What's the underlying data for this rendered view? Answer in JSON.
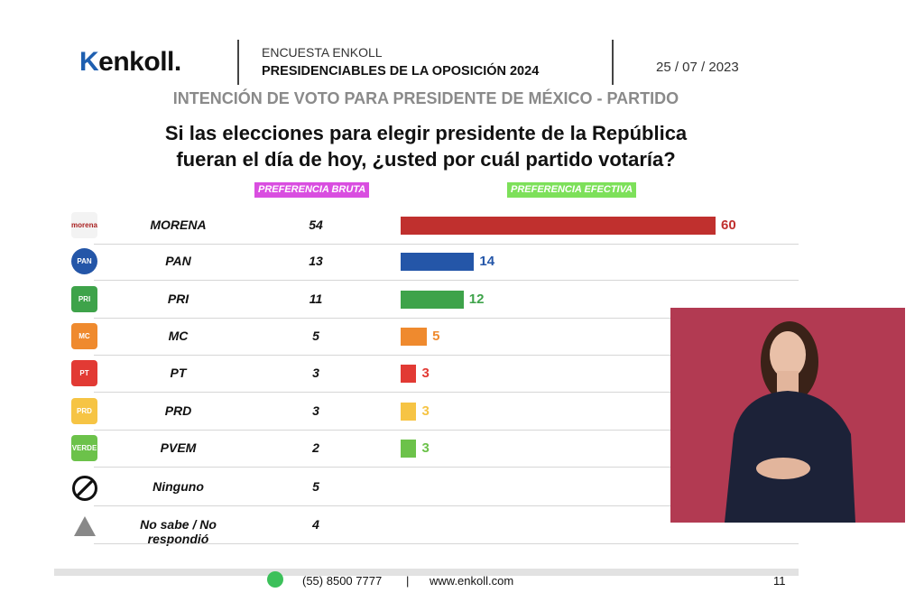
{
  "header": {
    "logo": "enkoll.",
    "survey": "ENCUESTA ENKOLL",
    "title": "PRESIDENCIABLES DE LA OPOSICIÓN 2024",
    "date": "25 / 07 / 2023"
  },
  "subtitle": "INTENCIÓN DE VOTO PARA PRESIDENTE DE MÉXICO - PARTIDO",
  "question_line1": "Si las elecciones para elegir presidente de la República",
  "question_line2": "fueran el día de hoy, ¿usted por cuál partido votaría?",
  "chart_data": {
    "type": "bar",
    "title": "INTENCIÓN DE VOTO PARA PRESIDENTE DE MÉXICO - PARTIDO",
    "columns": {
      "bruta": "PREFERENCIA BRUTA",
      "efectiva": "PREFERENCIA EFECTIVA"
    },
    "categories": [
      "MORENA",
      "PAN",
      "PRI",
      "MC",
      "PT",
      "PRD",
      "PVEM",
      "Ninguno",
      "No sabe / No respondió"
    ],
    "series": [
      {
        "name": "PREFERENCIA BRUTA",
        "values": [
          54,
          13,
          11,
          5,
          3,
          3,
          2,
          5,
          4
        ]
      },
      {
        "name": "PREFERENCIA EFECTIVA",
        "values": [
          60,
          14,
          12,
          5,
          3,
          3,
          3,
          null,
          null
        ]
      }
    ],
    "colors": [
      "#c0302e",
      "#2456a8",
      "#3ea34a",
      "#ef8a2e",
      "#e23a34",
      "#f6c444",
      "#6cc24a",
      null,
      null
    ],
    "icons": [
      "morena",
      "PAN",
      "PRI",
      "MC",
      "PT",
      "PRD",
      "VERDE",
      "ninguno-icon",
      "question-icon"
    ],
    "xlim": [
      0,
      60
    ]
  },
  "footer": {
    "phone": "(55) 8500 7777",
    "sep": "|",
    "website": "www.enkoll.com",
    "page": "11"
  }
}
